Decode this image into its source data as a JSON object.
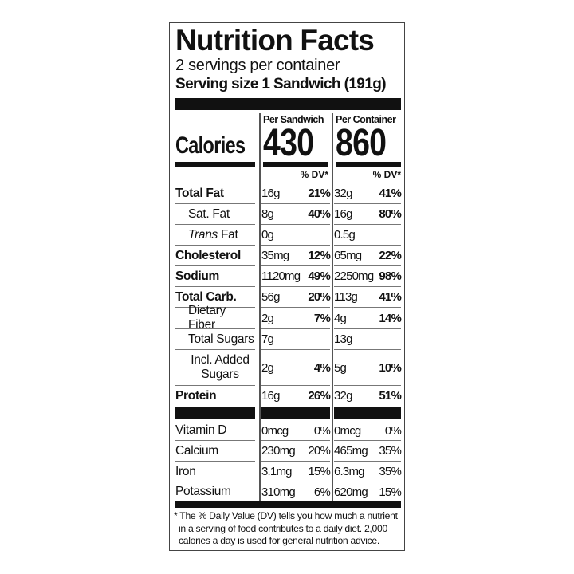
{
  "title": "Nutrition Facts",
  "servings_per_container": "2 servings per container",
  "serving_size": "Serving size 1 Sandwich (191g)",
  "calories_label": "Calories",
  "columns": [
    {
      "heading": "Per Sandwich",
      "calories": "430",
      "dv_label": "% DV*"
    },
    {
      "heading": "Per Container",
      "calories": "860",
      "dv_label": "% DV*"
    }
  ],
  "nutrients": [
    {
      "label": "Total Fat",
      "bold": true,
      "indent": 0,
      "a": "16g",
      "a_dv": "21%",
      "b": "32g",
      "b_dv": "41%"
    },
    {
      "label": "Sat. Fat",
      "bold": false,
      "indent": 1,
      "a": "8g",
      "a_dv": "40%",
      "b": "16g",
      "b_dv": "80%"
    },
    {
      "label": "Trans Fat",
      "bold": false,
      "indent": 1,
      "a": "0g",
      "a_dv": "",
      "b": "0.5g",
      "b_dv": ""
    },
    {
      "label": "Cholesterol",
      "bold": true,
      "indent": 0,
      "a": "35mg",
      "a_dv": "12%",
      "b": "65mg",
      "b_dv": "22%"
    },
    {
      "label": "Sodium",
      "bold": true,
      "indent": 0,
      "a": "1120mg",
      "a_dv": "49%",
      "b": "2250mg",
      "b_dv": "98%"
    },
    {
      "label": "Total Carb.",
      "bold": true,
      "indent": 0,
      "a": "56g",
      "a_dv": "20%",
      "b": "113g",
      "b_dv": "41%"
    },
    {
      "label": "Dietary Fiber",
      "bold": false,
      "indent": 1,
      "a": "2g",
      "a_dv": "7%",
      "b": "4g",
      "b_dv": "14%"
    },
    {
      "label": "Total Sugars",
      "bold": false,
      "indent": 1,
      "a": "7g",
      "a_dv": "",
      "b": "13g",
      "b_dv": ""
    },
    {
      "label": "Incl. Added Sugars",
      "bold": false,
      "indent": 2,
      "a": "2g",
      "a_dv": "4%",
      "b": "5g",
      "b_dv": "10%"
    },
    {
      "label": "Protein",
      "bold": true,
      "indent": 0,
      "a": "16g",
      "a_dv": "26%",
      "b": "32g",
      "b_dv": "51%"
    }
  ],
  "vitamins": [
    {
      "label": "Vitamin D",
      "a": "0mcg",
      "a_dv": "0%",
      "b": "0mcg",
      "b_dv": "0%"
    },
    {
      "label": "Calcium",
      "a": "230mg",
      "a_dv": "20%",
      "b": "465mg",
      "b_dv": "35%"
    },
    {
      "label": "Iron",
      "a": "3.1mg",
      "a_dv": "15%",
      "b": "6.3mg",
      "b_dv": "35%"
    },
    {
      "label": "Potassium",
      "a": "310mg",
      "a_dv": "6%",
      "b": "620mg",
      "b_dv": "15%"
    }
  ],
  "footnote": [
    "* The % Daily Value (DV) tells you how much a nutrient",
    "in a serving of food contributes to a daily diet. 2,000",
    "calories a day is used for general nutrition advice."
  ]
}
